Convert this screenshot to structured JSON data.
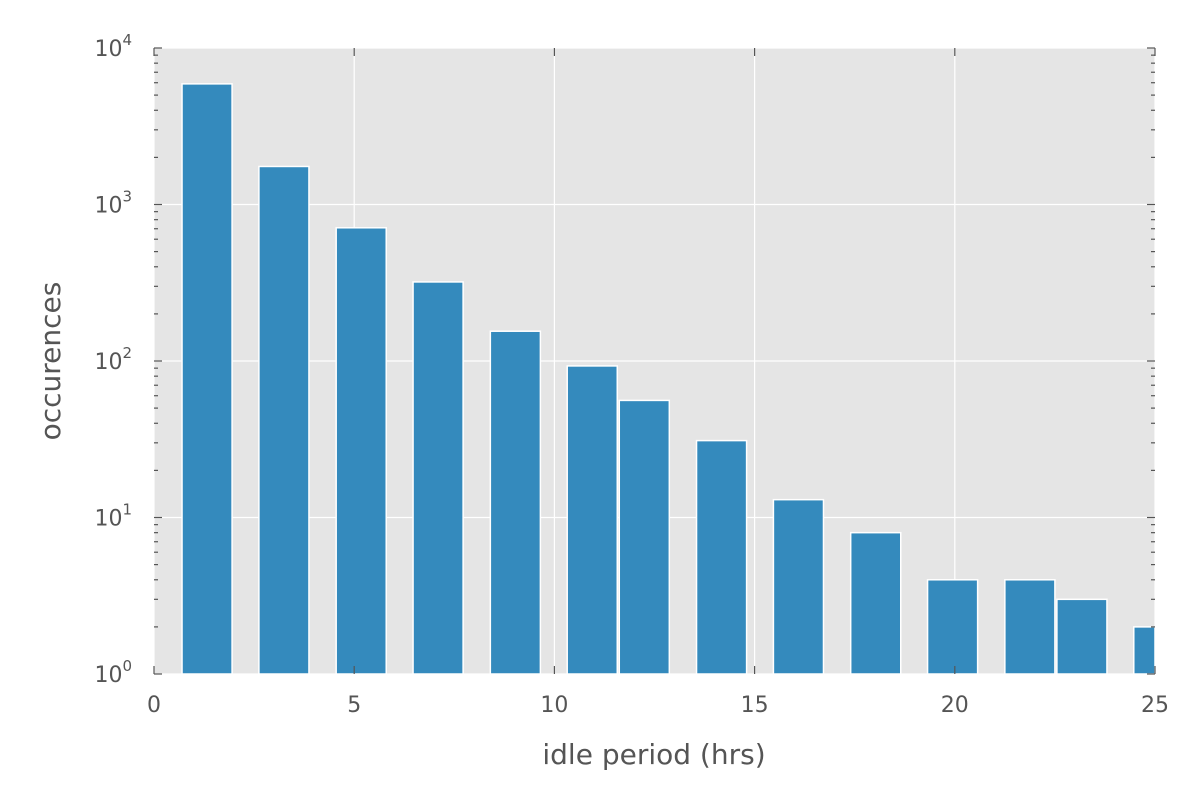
{
  "chart_data": {
    "type": "bar",
    "xlabel": "idle period (hrs)",
    "ylabel": "occurences",
    "xlim": [
      0,
      25
    ],
    "ylim": [
      1,
      10000
    ],
    "y_scale": "log",
    "x_ticks": [
      0,
      5,
      10,
      15,
      20,
      25
    ],
    "y_ticks": [
      {
        "base": "10",
        "exp": "0",
        "value": 1
      },
      {
        "base": "10",
        "exp": "1",
        "value": 10
      },
      {
        "base": "10",
        "exp": "2",
        "value": 100
      },
      {
        "base": "10",
        "exp": "3",
        "value": 1000
      },
      {
        "base": "10",
        "exp": "4",
        "value": 10000
      }
    ],
    "grid": true,
    "bar_color": "#348abd",
    "background_color": "#e5e5e5",
    "bars": [
      {
        "x0": 0.7,
        "x1": 1.95,
        "value": 5900
      },
      {
        "x0": 2.62,
        "x1": 3.87,
        "value": 1750
      },
      {
        "x0": 4.55,
        "x1": 5.8,
        "value": 710
      },
      {
        "x0": 6.47,
        "x1": 7.72,
        "value": 320
      },
      {
        "x0": 8.4,
        "x1": 9.65,
        "value": 155
      },
      {
        "x0": 10.32,
        "x1": 11.57,
        "value": 93
      },
      {
        "x0": 11.62,
        "x1": 12.87,
        "value": 56
      },
      {
        "x0": 13.55,
        "x1": 14.8,
        "value": 31
      },
      {
        "x0": 15.47,
        "x1": 16.72,
        "value": 13
      },
      {
        "x0": 17.4,
        "x1": 18.65,
        "value": 8
      },
      {
        "x0": 19.32,
        "x1": 20.57,
        "value": 4
      },
      {
        "x0": 21.25,
        "x1": 22.5,
        "value": 4
      },
      {
        "x0": 22.55,
        "x1": 23.8,
        "value": 3
      },
      {
        "x0": 24.47,
        "x1": 25.0,
        "value": 2
      }
    ]
  }
}
